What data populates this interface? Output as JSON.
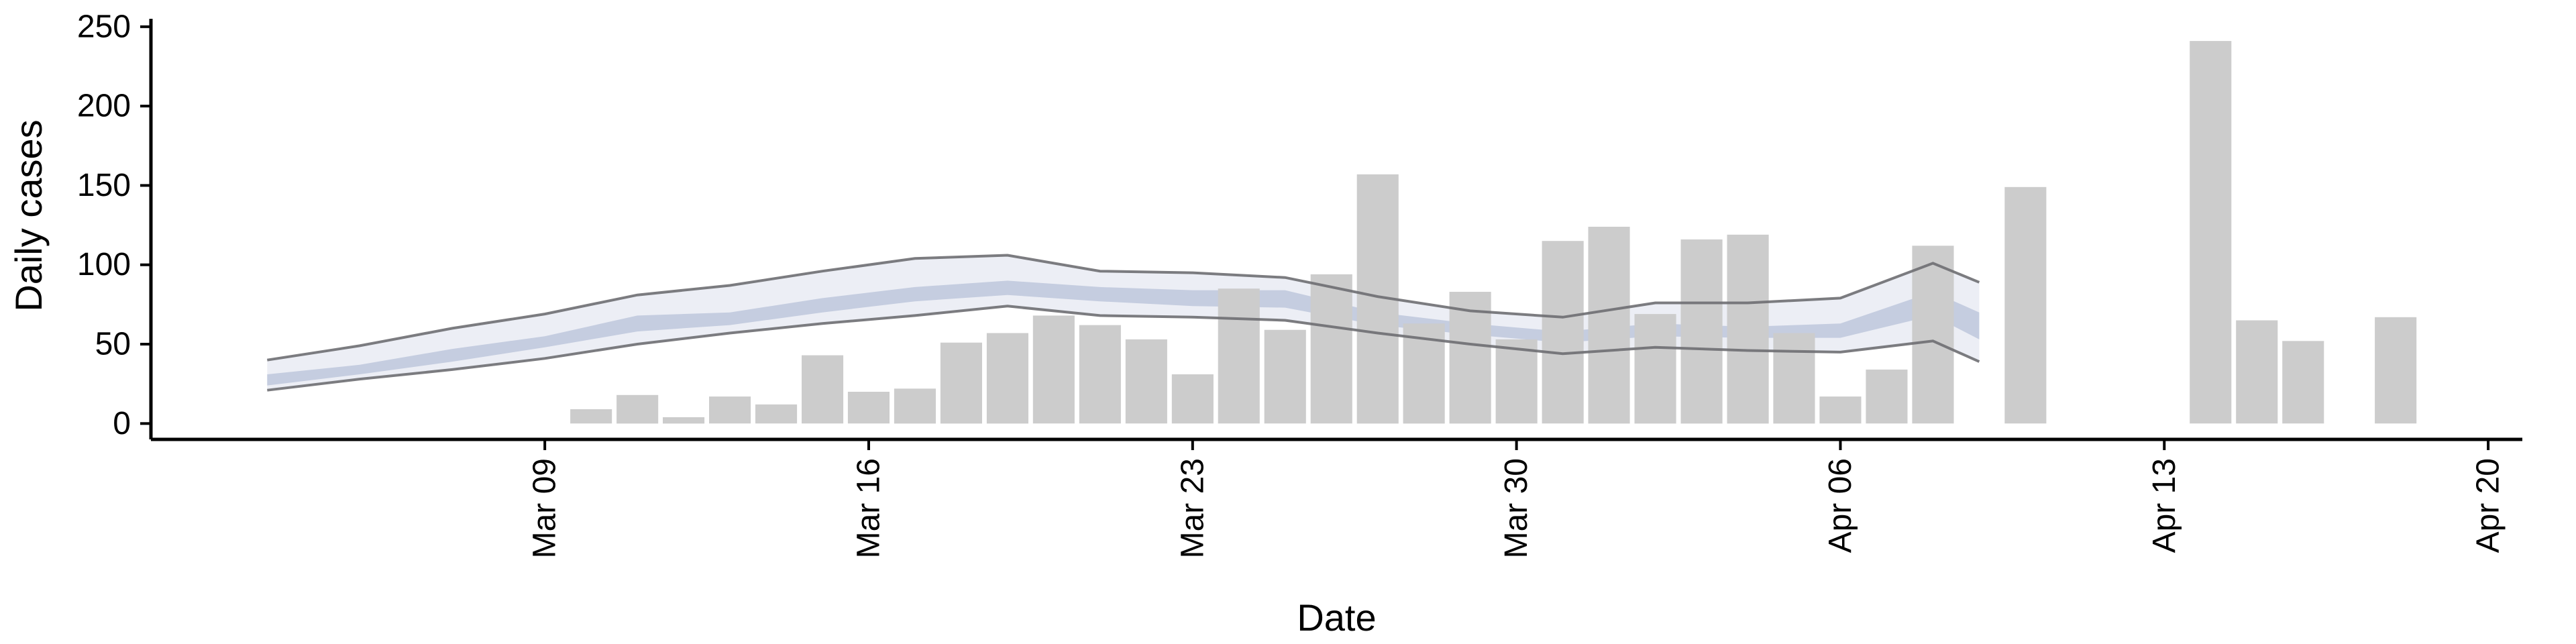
{
  "chart_data": {
    "type": "bar",
    "xlabel": "Date",
    "ylabel": "Daily cases",
    "xlim": [
      "2020-03-01",
      "2020-04-20"
    ],
    "ylim": [
      -10,
      255
    ],
    "x_ticks": [
      {
        "date": "2020-03-09",
        "label": "Mar 09"
      },
      {
        "date": "2020-03-16",
        "label": "Mar 16"
      },
      {
        "date": "2020-03-23",
        "label": "Mar 23"
      },
      {
        "date": "2020-03-30",
        "label": "Mar 30"
      },
      {
        "date": "2020-04-06",
        "label": "Apr 06"
      },
      {
        "date": "2020-04-13",
        "label": "Apr 13"
      },
      {
        "date": "2020-04-20",
        "label": "Apr 20"
      }
    ],
    "y_ticks": [
      0,
      50,
      100,
      150,
      200,
      250
    ],
    "grid": false,
    "legend": "none",
    "colors": {
      "bars": "#cccccc",
      "band_outer": "#eceef5",
      "band_inner": "#c5cde0",
      "band_lines": "#6e6e72",
      "axis": "#000000"
    },
    "bars": [
      {
        "date": "2020-03-10",
        "value": 9
      },
      {
        "date": "2020-03-11",
        "value": 18
      },
      {
        "date": "2020-03-12",
        "value": 4
      },
      {
        "date": "2020-03-13",
        "value": 17
      },
      {
        "date": "2020-03-14",
        "value": 12
      },
      {
        "date": "2020-03-15",
        "value": 43
      },
      {
        "date": "2020-03-16",
        "value": 20
      },
      {
        "date": "2020-03-17",
        "value": 22
      },
      {
        "date": "2020-03-18",
        "value": 51
      },
      {
        "date": "2020-03-19",
        "value": 57
      },
      {
        "date": "2020-03-20",
        "value": 68
      },
      {
        "date": "2020-03-21",
        "value": 62
      },
      {
        "date": "2020-03-22",
        "value": 53
      },
      {
        "date": "2020-03-23",
        "value": 31
      },
      {
        "date": "2020-03-24",
        "value": 85
      },
      {
        "date": "2020-03-25",
        "value": 59
      },
      {
        "date": "2020-03-26",
        "value": 94
      },
      {
        "date": "2020-03-27",
        "value": 157
      },
      {
        "date": "2020-03-28",
        "value": 63
      },
      {
        "date": "2020-03-29",
        "value": 83
      },
      {
        "date": "2020-03-30",
        "value": 53
      },
      {
        "date": "2020-03-31",
        "value": 115
      },
      {
        "date": "2020-04-01",
        "value": 124
      },
      {
        "date": "2020-04-02",
        "value": 69
      },
      {
        "date": "2020-04-03",
        "value": 116
      },
      {
        "date": "2020-04-04",
        "value": 119
      },
      {
        "date": "2020-04-05",
        "value": 57
      },
      {
        "date": "2020-04-06",
        "value": 17
      },
      {
        "date": "2020-04-07",
        "value": 34
      },
      {
        "date": "2020-04-08",
        "value": 112
      },
      {
        "date": "2020-04-10",
        "value": 149
      },
      {
        "date": "2020-04-14",
        "value": 241
      },
      {
        "date": "2020-04-15",
        "value": 65
      },
      {
        "date": "2020-04-16",
        "value": 52
      },
      {
        "date": "2020-04-18",
        "value": 67
      }
    ],
    "band": {
      "dates": [
        "2020-03-03",
        "2020-03-05",
        "2020-03-07",
        "2020-03-09",
        "2020-03-11",
        "2020-03-13",
        "2020-03-15",
        "2020-03-17",
        "2020-03-19",
        "2020-03-21",
        "2020-03-23",
        "2020-03-25",
        "2020-03-27",
        "2020-03-29",
        "2020-03-31",
        "2020-04-02",
        "2020-04-04",
        "2020-04-06",
        "2020-04-08",
        "2020-04-09"
      ],
      "upper": [
        40,
        49,
        60,
        69,
        81,
        87,
        96,
        104,
        106,
        96,
        95,
        92,
        80,
        71,
        67,
        76,
        76,
        79,
        101,
        89
      ],
      "inner_upper": [
        31,
        37,
        47,
        55,
        68,
        70,
        79,
        86,
        90,
        86,
        84,
        84,
        70,
        63,
        58,
        63,
        61,
        63,
        83,
        70
      ],
      "inner_lower": [
        24,
        31,
        39,
        48,
        58,
        62,
        70,
        77,
        81,
        77,
        74,
        73,
        62,
        56,
        51,
        55,
        54,
        54,
        68,
        53
      ],
      "lower": [
        21,
        28,
        34,
        41,
        50,
        57,
        63,
        68,
        74,
        68,
        67,
        65,
        57,
        50,
        44,
        48,
        46,
        45,
        52,
        39
      ]
    }
  }
}
